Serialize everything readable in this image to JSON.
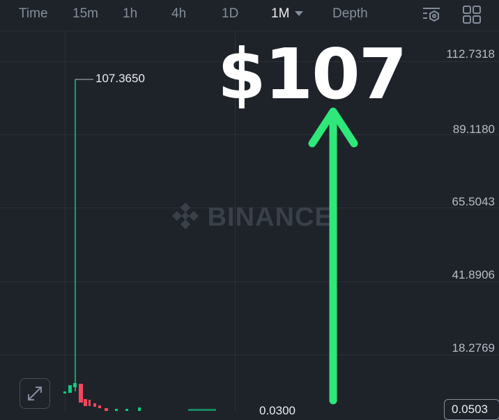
{
  "toolbar": {
    "tabs": [
      {
        "label": "Time",
        "active": false
      },
      {
        "label": "15m",
        "active": false
      },
      {
        "label": "1h",
        "active": false
      },
      {
        "label": "4h",
        "active": false
      },
      {
        "label": "1D",
        "active": false
      },
      {
        "label": "1M",
        "active": true
      },
      {
        "label": "Depth",
        "active": false
      }
    ],
    "icons": [
      "indicator-settings-icon",
      "grid-layout-icon"
    ]
  },
  "chart": {
    "y_axis_labels": [
      "112.7318",
      "89.1180",
      "65.5043",
      "41.8906",
      "18.2769"
    ],
    "high_label": "107.3650",
    "low_label": "0.0300",
    "last_price": "0.0503",
    "watermark": "BINANCE",
    "up_color": "#0ecb81",
    "down_color": "#f6465d"
  },
  "overlay": {
    "headline": "$107",
    "arrow_color": "#2ee87a"
  }
}
